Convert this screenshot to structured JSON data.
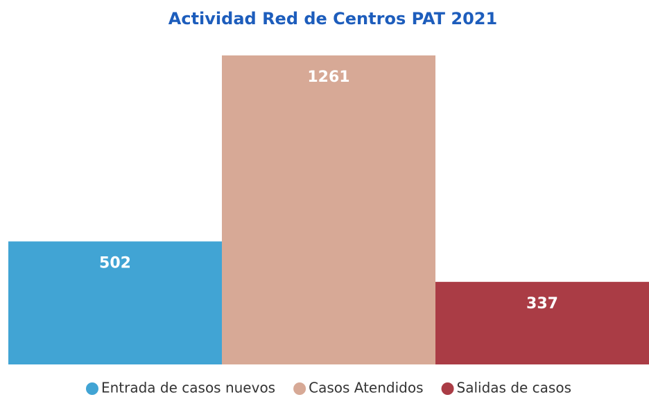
{
  "chart_data": {
    "type": "bar",
    "title": "Actividad Red de Centros PAT 2021",
    "series": [
      {
        "name": "Entrada de casos nuevos",
        "color": "#41a4d4",
        "values": [
          502
        ]
      },
      {
        "name": "Casos Atendidos",
        "color": "#d7a996",
        "values": [
          1261
        ]
      },
      {
        "name": "Salidas de casos",
        "color": "#aa3c45",
        "values": [
          337
        ]
      }
    ]
  }
}
